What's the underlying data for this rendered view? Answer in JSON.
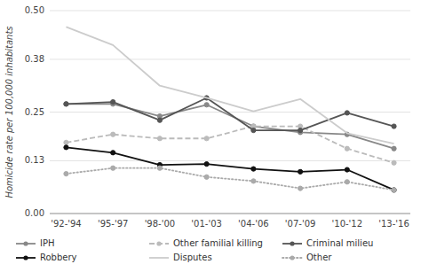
{
  "chart_data": {
    "type": "line",
    "categories": [
      "'92-'94",
      "'95-'97",
      "'98-'00",
      "'01-'03",
      "'04-'06",
      "'07-'09",
      "'10-'12",
      "'13-'16"
    ],
    "series": [
      {
        "name": "IPH",
        "color": "#888888",
        "line_style": "solid",
        "marker": "circle",
        "values": [
          0.27,
          0.27,
          0.24,
          0.268,
          0.215,
          0.2,
          0.195,
          0.16
        ]
      },
      {
        "name": "Other familial killing",
        "color": "#bbbbbb",
        "line_style": "dashed",
        "marker": "circle",
        "values": [
          0.175,
          0.195,
          0.185,
          0.185,
          0.215,
          0.215,
          0.16,
          0.125
        ]
      },
      {
        "name": "Criminal milieu",
        "color": "#555555",
        "line_style": "solid",
        "marker": "circle",
        "values": [
          0.27,
          0.275,
          0.23,
          0.285,
          0.205,
          0.205,
          0.248,
          0.215
        ]
      },
      {
        "name": "Robbery",
        "color": "#111111",
        "line_style": "solid",
        "marker": "circle",
        "values": [
          0.163,
          0.15,
          0.12,
          0.122,
          0.11,
          0.103,
          0.108,
          0.058
        ]
      },
      {
        "name": "Disputes",
        "color": "#cccccc",
        "line_style": "solid",
        "marker": "none",
        "values": [
          0.46,
          0.415,
          0.315,
          0.285,
          0.252,
          0.282,
          0.198,
          0.172
        ]
      },
      {
        "name": "Other",
        "color": "#aaaaaa",
        "line_style": "dotted",
        "marker": "circle",
        "values": [
          0.098,
          0.112,
          0.112,
          0.09,
          0.08,
          0.062,
          0.078,
          0.058
        ]
      }
    ],
    "y_label": "Homicide rate per 100,000 inhabitants",
    "ylim": [
      0.0,
      0.5
    ],
    "yticks": [
      {
        "value": 0.0,
        "label": "0.00"
      },
      0.13,
      0.25,
      0.38,
      {
        "value": 0.5,
        "label": "0.50"
      }
    ],
    "grid": true,
    "legend": "bottom"
  }
}
